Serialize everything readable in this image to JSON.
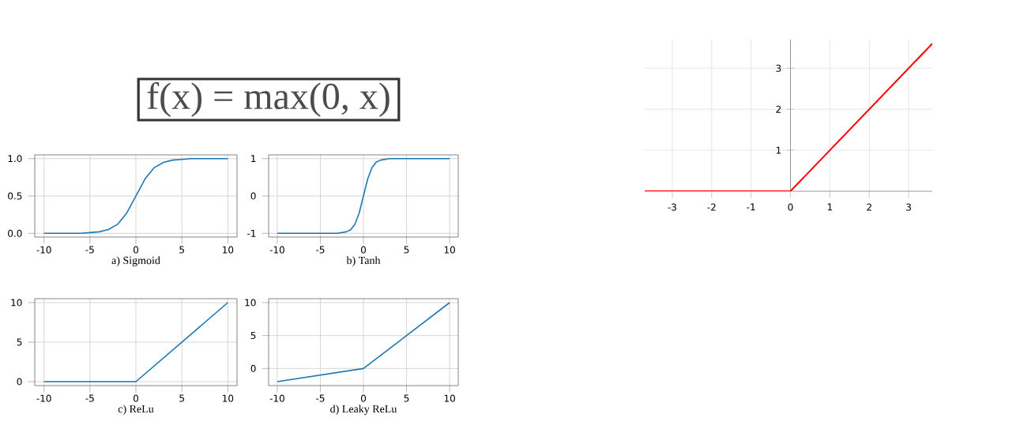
{
  "chart_data": [
    {
      "type": "other",
      "title": "f(x) = max(0, x)"
    },
    {
      "type": "line",
      "xlabel": "a) Sigmoid",
      "xlim": [
        -11,
        11
      ],
      "ylim": [
        -0.05,
        1.05
      ],
      "xticks": [
        -10,
        -5,
        0,
        5,
        10
      ],
      "yticks": [
        {
          "value": 0,
          "label": "0.0"
        },
        {
          "value": 0.5,
          "label": "0.5"
        },
        {
          "value": 1,
          "label": "1.0"
        }
      ],
      "grid": true,
      "line_style": "solid",
      "series": [
        {
          "color": "#1f77b4",
          "x": [
            -10,
            -6,
            -5,
            -4,
            -3,
            -2,
            -1,
            0,
            1,
            2,
            3,
            4,
            5,
            6,
            10
          ],
          "values": [
            0.0,
            0.0,
            0.01,
            0.02,
            0.05,
            0.12,
            0.27,
            0.5,
            0.73,
            0.88,
            0.95,
            0.98,
            0.99,
            1.0,
            1.0
          ]
        }
      ]
    },
    {
      "type": "line",
      "xlabel": "b) Tanh",
      "xlim": [
        -11,
        11
      ],
      "ylim": [
        -1.1,
        1.1
      ],
      "xticks": [
        -10,
        -5,
        0,
        5,
        10
      ],
      "yticks": [
        -1,
        0,
        1
      ],
      "grid": true,
      "line_style": "solid",
      "series": [
        {
          "color": "#1f77b4",
          "x": [
            -10,
            -3,
            -2,
            -1.5,
            -1,
            -0.5,
            0,
            0.5,
            1,
            1.5,
            2,
            3,
            10
          ],
          "values": [
            -1.0,
            -1.0,
            -0.96,
            -0.91,
            -0.76,
            -0.46,
            0.0,
            0.46,
            0.76,
            0.91,
            0.96,
            1.0,
            1.0
          ]
        }
      ]
    },
    {
      "type": "line",
      "xlabel": "c) ReLu",
      "xlim": [
        -11,
        11
      ],
      "ylim": [
        -0.5,
        10.5
      ],
      "xticks": [
        -10,
        -5,
        0,
        5,
        10
      ],
      "yticks": [
        0,
        5,
        10
      ],
      "grid": true,
      "line_style": "solid",
      "series": [
        {
          "color": "#1f77b4",
          "x": [
            -10,
            0,
            10
          ],
          "values": [
            0,
            0,
            10
          ]
        }
      ]
    },
    {
      "type": "line",
      "xlabel": "d) Leaky ReLu",
      "xlim": [
        -11,
        11
      ],
      "ylim": [
        -2.6,
        10.6
      ],
      "xticks": [
        -10,
        -5,
        0,
        5,
        10
      ],
      "yticks": [
        0,
        5,
        10
      ],
      "grid": true,
      "line_style": "solid",
      "series": [
        {
          "color": "#1f77b4",
          "x": [
            -10,
            0,
            10
          ],
          "values": [
            -2,
            0,
            10
          ]
        }
      ]
    },
    {
      "type": "line",
      "xlim": [
        -3.7,
        3.6
      ],
      "ylim": [
        0,
        3.7
      ],
      "xticks": [
        -3,
        -2,
        -1,
        0,
        1,
        2,
        3
      ],
      "yticks": [
        1,
        2,
        3
      ],
      "grid": true,
      "line_style": "solid",
      "series": [
        {
          "color": "#ff0000",
          "x": [
            -3.7,
            0,
            3.6
          ],
          "values": [
            0,
            0,
            3.6
          ]
        }
      ]
    }
  ]
}
